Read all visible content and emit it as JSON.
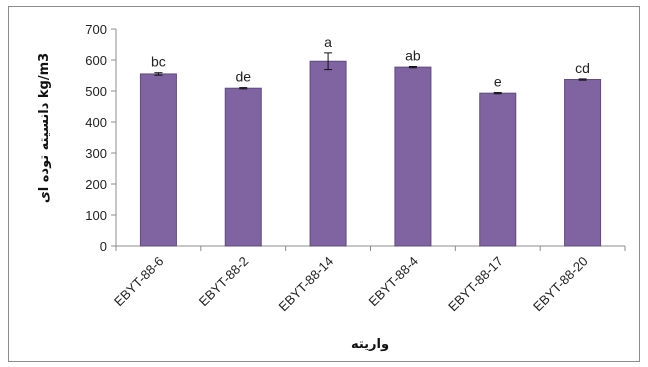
{
  "chart_data": {
    "type": "bar",
    "title": "",
    "xlabel": "واریته",
    "ylabel": "kg/m3 دانسیته توده ای",
    "categories": [
      "EBYT-88-6",
      "EBYT-88-2",
      "EBYT-88-14",
      "EBYT-88-4",
      "EBYT-88-17",
      "EBYT-88-20"
    ],
    "series": [
      {
        "values": [
          555,
          509,
          596,
          577,
          493,
          537
        ],
        "error": [
          4,
          2,
          27,
          2,
          2,
          2
        ]
      }
    ],
    "data_labels": [
      "bc",
      "de",
      "a",
      "ab",
      "e",
      "cd"
    ],
    "ylim": [
      0,
      700
    ],
    "yticks": [
      "0",
      "100",
      "200",
      "300",
      "400",
      "500",
      "600",
      "700"
    ],
    "grid": false,
    "bar_color": "#8064a2",
    "bar_edge_color": "#5f4a7f"
  }
}
